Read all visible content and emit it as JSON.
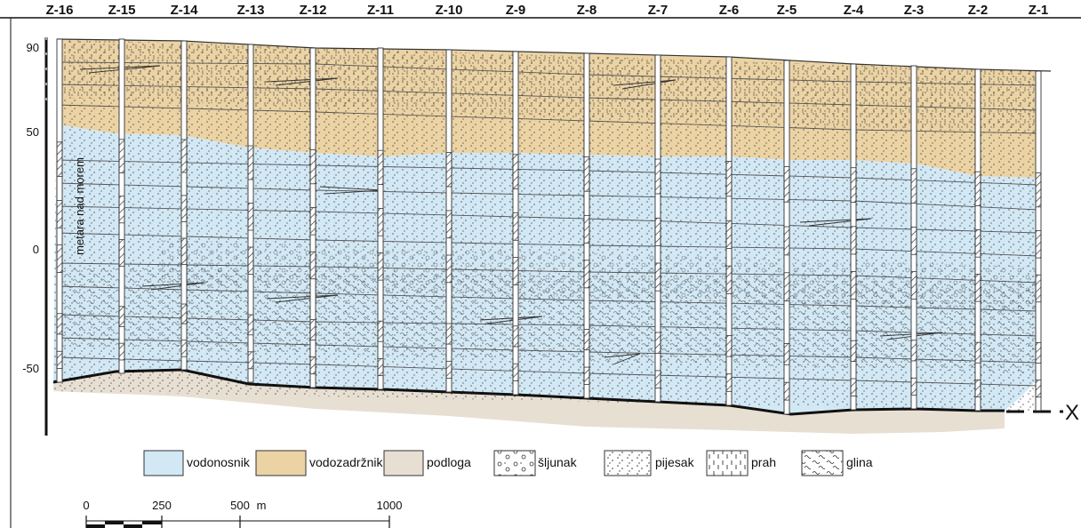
{
  "wells": [
    "Z-16",
    "Z-15",
    "Z-14",
    "Z-13",
    "Z-12",
    "Z-11",
    "Z-10",
    "Z-9",
    "Z-8",
    "Z-7",
    "Z-6",
    "Z-5",
    "Z-4",
    "Z-3",
    "Z-2",
    "Z-1"
  ],
  "y_axis": {
    "label": "metara nad morem",
    "ticks": [
      "90",
      "50",
      "0",
      "-50"
    ]
  },
  "legend": [
    {
      "key": "vodonosnik",
      "label": "vodonosnik",
      "color": "#d2e8f5",
      "pattern": "none"
    },
    {
      "key": "vodozadrznik",
      "label": "vodozadržnik",
      "color": "#ecd3a4",
      "pattern": "none"
    },
    {
      "key": "podloga",
      "label": "podloga",
      "color": "#e8dfd3",
      "pattern": "none"
    },
    {
      "key": "sljunak",
      "label": "šljunak",
      "color": "#ffffff",
      "pattern": "gravel"
    },
    {
      "key": "pijesak",
      "label": "pijesak",
      "color": "#ffffff",
      "pattern": "sand"
    },
    {
      "key": "prah",
      "label": "prah",
      "color": "#ffffff",
      "pattern": "silt"
    },
    {
      "key": "glina",
      "label": "glina",
      "color": "#ffffff",
      "pattern": "clay"
    }
  ],
  "scale_bar": {
    "labels": [
      "0",
      "250",
      "500",
      "m",
      "1000"
    ]
  },
  "section_marker": "X",
  "colors": {
    "aquifer": "#d2e8f5",
    "aquitard": "#ecd3a4",
    "bedrock": "#e8dfd3",
    "line": "#3a3a3a"
  }
}
